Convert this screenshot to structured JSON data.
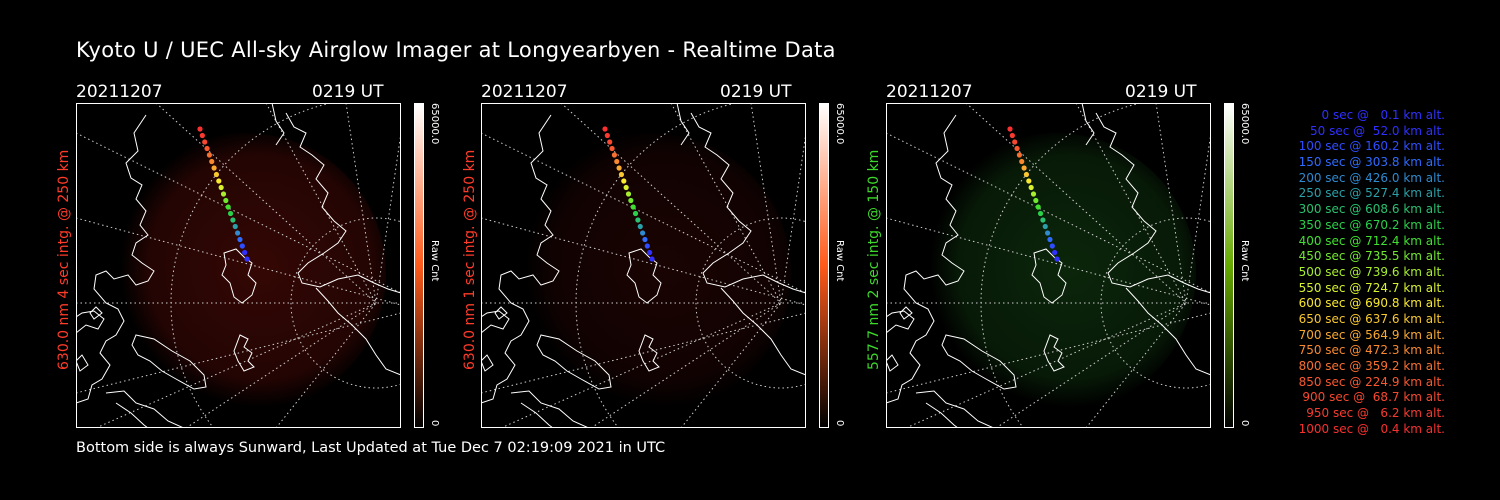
{
  "header": {
    "title": "Kyoto U / UEC All-sky Airglow Imager at Longyearbyen - Realtime Data"
  },
  "footer": {
    "text": "Bottom side is always Sunward, Last Updated at Tue Dec  7 02:19:09 2021 in UTC"
  },
  "panels": [
    {
      "date": "20211207",
      "time": "0219 UT",
      "label": "630.0 nm 4 sec intg. @ 250 km",
      "label_color": "#ff3b2a",
      "cbar_max": "65000.0",
      "cbar_min": "0",
      "cbar_unit": "Raw Cnt",
      "cbar_top": "#ffffff",
      "cbar_mid": "#ff5a1a",
      "cbar_bottom": "#000000",
      "glow": "#3a0805"
    },
    {
      "date": "20211207",
      "time": "0219 UT",
      "label": "630.0 nm 1 sec intg. @ 250 km",
      "label_color": "#ff3b2a",
      "cbar_max": "65000.0",
      "cbar_min": "0",
      "cbar_unit": "Raw Cnt",
      "cbar_top": "#ffffff",
      "cbar_mid": "#ff5a1a",
      "cbar_bottom": "#000000",
      "glow": "#1c0403"
    },
    {
      "date": "20211207",
      "time": "0219 UT",
      "label": "557.7 nm 2 sec intg. @ 150 km",
      "label_color": "#3cd82a",
      "cbar_max": "65000.0",
      "cbar_min": "0",
      "cbar_unit": "Raw Cnt",
      "cbar_top": "#ffffff",
      "cbar_mid": "#66aa00",
      "cbar_bottom": "#000000",
      "glow": "#0c2a0c"
    }
  ],
  "trajectory_legend": [
    {
      "text": "0 sec @   0.1 km alt.",
      "color": "#3030ff"
    },
    {
      "text": "50 sec @  52.0 km alt.",
      "color": "#3030ff"
    },
    {
      "text": "100 sec @ 160.2 km alt.",
      "color": "#2f4dff"
    },
    {
      "text": "150 sec @ 303.8 km alt.",
      "color": "#2f6bff"
    },
    {
      "text": "200 sec @ 426.0 km alt.",
      "color": "#2f8ad0"
    },
    {
      "text": "250 sec @ 527.4 km alt.",
      "color": "#2aa0a8"
    },
    {
      "text": "300 sec @ 608.6 km alt.",
      "color": "#2ac070"
    },
    {
      "text": "350 sec @ 670.2 km alt.",
      "color": "#2ad04a"
    },
    {
      "text": "400 sec @ 712.4 km alt.",
      "color": "#40e030"
    },
    {
      "text": "450 sec @ 735.5 km alt.",
      "color": "#70e830"
    },
    {
      "text": "500 sec @ 739.6 km alt.",
      "color": "#a8ee30"
    },
    {
      "text": "550 sec @ 724.7 km alt.",
      "color": "#d8f030"
    },
    {
      "text": "600 sec @ 690.8 km alt.",
      "color": "#f8e830"
    },
    {
      "text": "650 sec @ 637.6 km alt.",
      "color": "#f8c830"
    },
    {
      "text": "700 sec @ 564.9 km alt.",
      "color": "#f8a830"
    },
    {
      "text": "750 sec @ 472.3 km alt.",
      "color": "#f88830"
    },
    {
      "text": "800 sec @ 359.2 km alt.",
      "color": "#f87030"
    },
    {
      "text": "850 sec @ 224.9 km alt.",
      "color": "#f85830"
    },
    {
      "text": "900 sec @  68.7 km alt.",
      "color": "#f84830"
    },
    {
      "text": "950 sec @   6.2 km alt.",
      "color": "#f83a30"
    },
    {
      "text": "1000 sec @   0.4 km alt.",
      "color": "#f83030"
    }
  ]
}
